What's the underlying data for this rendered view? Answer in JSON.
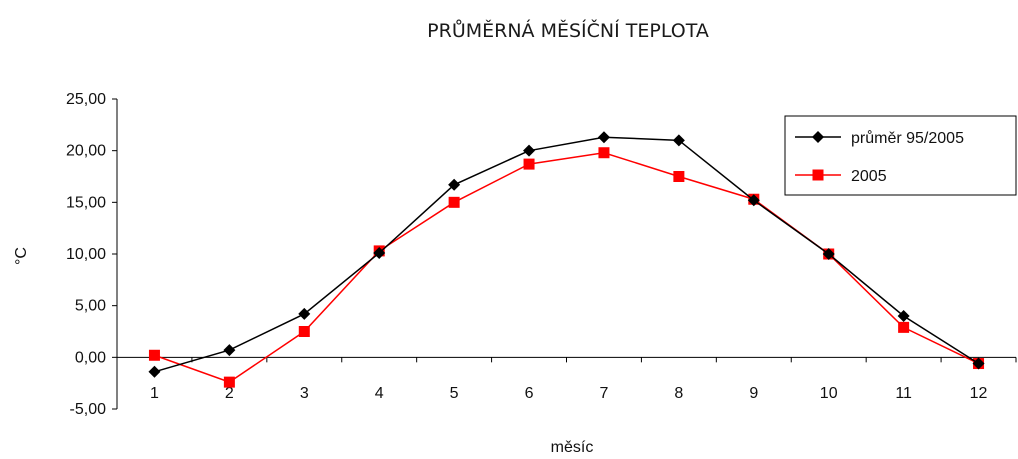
{
  "chart_data": {
    "type": "line",
    "title": "PRŮMĚRNÁ MĚSÍČNÍ TEPLOTA",
    "xlabel": "měsíc",
    "ylabel": "°C",
    "ylim": [
      -5,
      25
    ],
    "y_ticks": [
      "-5,00",
      "0,00",
      "5,00",
      "10,00",
      "15,00",
      "20,00",
      "25,00"
    ],
    "grid": false,
    "legend_position": "top-right",
    "categories": [
      "1",
      "2",
      "3",
      "4",
      "5",
      "6",
      "7",
      "8",
      "9",
      "10",
      "11",
      "12"
    ],
    "series": [
      {
        "name": "průměr 95/2005",
        "color": "#000000",
        "marker": "diamond",
        "values": [
          -1.4,
          0.7,
          4.2,
          10.1,
          16.7,
          20.0,
          21.3,
          21.0,
          15.2,
          10.0,
          4.0,
          -0.6
        ]
      },
      {
        "name": "2005",
        "color": "#ff0000",
        "marker": "square",
        "values": [
          0.2,
          -2.4,
          2.5,
          10.3,
          15.0,
          18.7,
          19.8,
          17.5,
          15.3,
          10.0,
          2.9,
          -0.6
        ]
      }
    ]
  }
}
